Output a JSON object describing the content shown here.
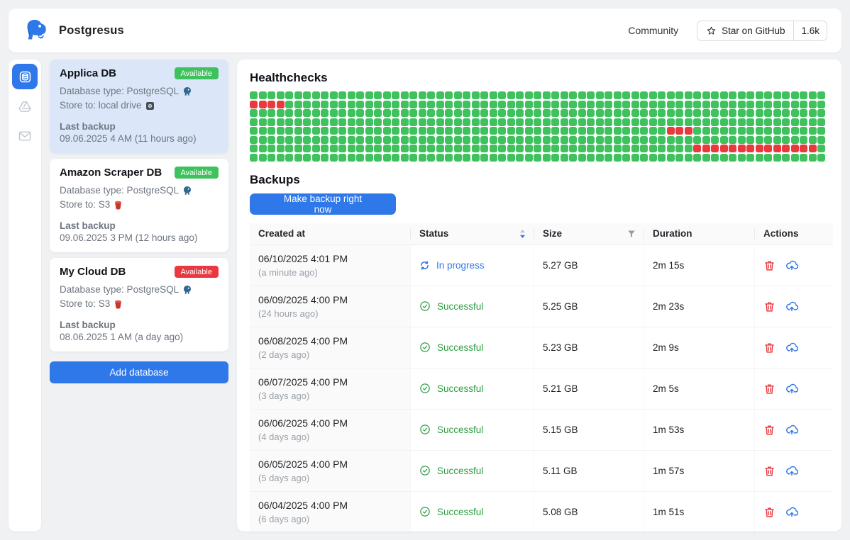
{
  "header": {
    "app_name": "Postgresus",
    "community_label": "Community",
    "star_label": "Star on GitHub",
    "star_count": "1.6k"
  },
  "nav_rail": {
    "items": [
      {
        "id": "databases",
        "icon": "database-icon",
        "active": true
      },
      {
        "id": "storage",
        "icon": "drive-icon",
        "active": false
      },
      {
        "id": "notifications",
        "icon": "mail-icon",
        "active": false
      }
    ]
  },
  "sidebar": {
    "add_database_label": "Add database",
    "databases": [
      {
        "name": "Applica DB",
        "status_badge": "Available",
        "badge_color": "#3fc25e",
        "selected": true,
        "type_label": "Database type: PostgreSQL",
        "type_icon": "postgresql-elephant-icon",
        "store_label": "Store to: local drive",
        "store_icon": "hard-drive-icon",
        "last_backup_label": "Last backup",
        "last_backup_value": "09.06.2025 4 AM (11 hours ago)"
      },
      {
        "name": "Amazon Scraper DB",
        "status_badge": "Available",
        "badge_color": "#3fc25e",
        "selected": false,
        "type_label": "Database type: PostgreSQL",
        "type_icon": "postgresql-elephant-icon",
        "store_label": "Store to: S3",
        "store_icon": "s3-icon",
        "last_backup_label": "Last backup",
        "last_backup_value": "09.06.2025 3 PM (12 hours ago)"
      },
      {
        "name": "My Cloud DB",
        "status_badge": "Available",
        "badge_color": "#e9393f",
        "selected": false,
        "type_label": "Database type: PostgreSQL",
        "type_icon": "postgresql-elephant-icon",
        "store_label": "Store to: S3",
        "store_icon": "s3-icon",
        "last_backup_label": "Last backup",
        "last_backup_value": "08.06.2025 1 AM (a day ago)"
      }
    ]
  },
  "healthchecks": {
    "title": "Healthchecks",
    "rows": 8,
    "cols": 65,
    "failed_cells": [
      [
        1,
        0
      ],
      [
        1,
        1
      ],
      [
        1,
        2
      ],
      [
        1,
        3
      ],
      [
        4,
        47
      ],
      [
        4,
        48
      ],
      [
        4,
        49
      ],
      [
        6,
        50
      ],
      [
        6,
        51
      ],
      [
        6,
        52
      ],
      [
        6,
        53
      ],
      [
        6,
        54
      ],
      [
        6,
        55
      ],
      [
        6,
        56
      ],
      [
        6,
        57
      ],
      [
        6,
        58
      ],
      [
        6,
        59
      ],
      [
        6,
        60
      ],
      [
        6,
        61
      ],
      [
        6,
        62
      ],
      [
        6,
        63
      ]
    ]
  },
  "backups": {
    "title": "Backups",
    "make_backup_label": "Make backup right now",
    "table": {
      "columns": [
        {
          "label": "Created at"
        },
        {
          "label": "Status",
          "icon": "sort-carets-icon"
        },
        {
          "label": "Size",
          "icon": "filter-icon"
        },
        {
          "label": "Duration"
        },
        {
          "label": "Actions"
        }
      ],
      "rows": [
        {
          "created_at": "06/10/2025 4:01 PM",
          "created_ago": "(a minute ago)",
          "status": "In progress",
          "status_kind": "in_progress",
          "status_icon": "sync-icon",
          "size": "5.27 GB",
          "duration": "2m 15s",
          "actions": [
            "trash-icon",
            "cloud-upload-icon"
          ]
        },
        {
          "created_at": "06/09/2025 4:00 PM",
          "created_ago": "(24 hours ago)",
          "status": "Successful",
          "status_kind": "successful",
          "status_icon": "check-circle-icon",
          "size": "5.25 GB",
          "duration": "2m 23s",
          "actions": [
            "trash-icon",
            "cloud-upload-icon"
          ]
        },
        {
          "created_at": "06/08/2025 4:00 PM",
          "created_ago": "(2 days ago)",
          "status": "Successful",
          "status_kind": "successful",
          "status_icon": "check-circle-icon",
          "size": "5.23 GB",
          "duration": "2m 9s",
          "actions": [
            "trash-icon",
            "cloud-upload-icon"
          ]
        },
        {
          "created_at": "06/07/2025 4:00 PM",
          "created_ago": "(3 days ago)",
          "status": "Successful",
          "status_kind": "successful",
          "status_icon": "check-circle-icon",
          "size": "5.21 GB",
          "duration": "2m 5s",
          "actions": [
            "trash-icon",
            "cloud-upload-icon"
          ]
        },
        {
          "created_at": "06/06/2025 4:00 PM",
          "created_ago": "(4 days ago)",
          "status": "Successful",
          "status_kind": "successful",
          "status_icon": "check-circle-icon",
          "size": "5.15 GB",
          "duration": "1m 53s",
          "actions": [
            "trash-icon",
            "cloud-upload-icon"
          ]
        },
        {
          "created_at": "06/05/2025 4:00 PM",
          "created_ago": "(5 days ago)",
          "status": "Successful",
          "status_kind": "successful",
          "status_icon": "check-circle-icon",
          "size": "5.11 GB",
          "duration": "1m 57s",
          "actions": [
            "trash-icon",
            "cloud-upload-icon"
          ]
        },
        {
          "created_at": "06/04/2025 4:00 PM",
          "created_ago": "(6 days ago)",
          "status": "Successful",
          "status_kind": "successful",
          "status_icon": "check-circle-icon",
          "size": "5.08 GB",
          "duration": "1m 51s",
          "actions": [
            "trash-icon",
            "cloud-upload-icon"
          ]
        }
      ]
    }
  },
  "colors": {
    "accent_blue": "#2e78ea",
    "success_green": "#3fc25e",
    "success_text_green": "#2f9e44",
    "danger_red": "#e9393f",
    "selected_card_bg": "#dbe7f8",
    "page_bg": "#f0f1f3"
  }
}
